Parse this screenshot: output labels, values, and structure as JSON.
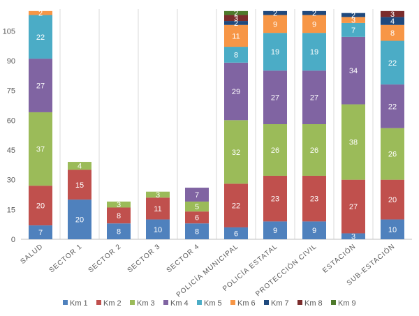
{
  "chart_data": {
    "type": "bar",
    "stacked": true,
    "categories": [
      "SALUD",
      "SECTOR 1",
      "SECTOR 2",
      "SECTOR 3",
      "SECTOR 4",
      "POLICÍA MUNICIPAL",
      "POLICÍA ESTATAL",
      "PROTECCIÓN CIVIL",
      "ESTACIÓN",
      "SUB-ESTACIÓN"
    ],
    "ylim": [
      0,
      116
    ],
    "yticks": [
      0,
      15,
      30,
      45,
      60,
      75,
      90,
      105
    ],
    "grid": "vertical-category-separators",
    "legend_position": "bottom",
    "series": [
      {
        "name": "Km 1",
        "color": "#4f81bd",
        "values": [
          7,
          20,
          8,
          10,
          8,
          6,
          9,
          9,
          3,
          10
        ]
      },
      {
        "name": "Km 2",
        "color": "#c0504d",
        "values": [
          20,
          15,
          8,
          11,
          6,
          22,
          23,
          23,
          27,
          20
        ]
      },
      {
        "name": "Km 3",
        "color": "#9bbb59",
        "values": [
          37,
          4,
          3,
          3,
          5,
          32,
          26,
          26,
          38,
          26
        ]
      },
      {
        "name": "Km 4",
        "color": "#8064a2",
        "values": [
          27,
          0,
          0,
          0,
          7,
          29,
          27,
          27,
          34,
          22
        ]
      },
      {
        "name": "Km 5",
        "color": "#4bacc6",
        "values": [
          22,
          0,
          0,
          0,
          0,
          8,
          19,
          19,
          7,
          22
        ]
      },
      {
        "name": "Km 6",
        "color": "#f79646",
        "values": [
          2,
          0,
          0,
          0,
          0,
          11,
          9,
          9,
          3,
          8
        ]
      },
      {
        "name": "Km 7",
        "color": "#1f497d",
        "values": [
          0,
          0,
          0,
          0,
          0,
          2,
          2,
          2,
          2,
          4
        ]
      },
      {
        "name": "Km 8",
        "color": "#7b2c2c",
        "values": [
          0,
          0,
          0,
          0,
          0,
          3,
          0,
          0,
          0,
          3
        ]
      },
      {
        "name": "Km 9",
        "color": "#4e7a2b",
        "values": [
          0,
          0,
          0,
          0,
          0,
          2,
          0,
          0,
          0,
          0
        ]
      }
    ]
  }
}
